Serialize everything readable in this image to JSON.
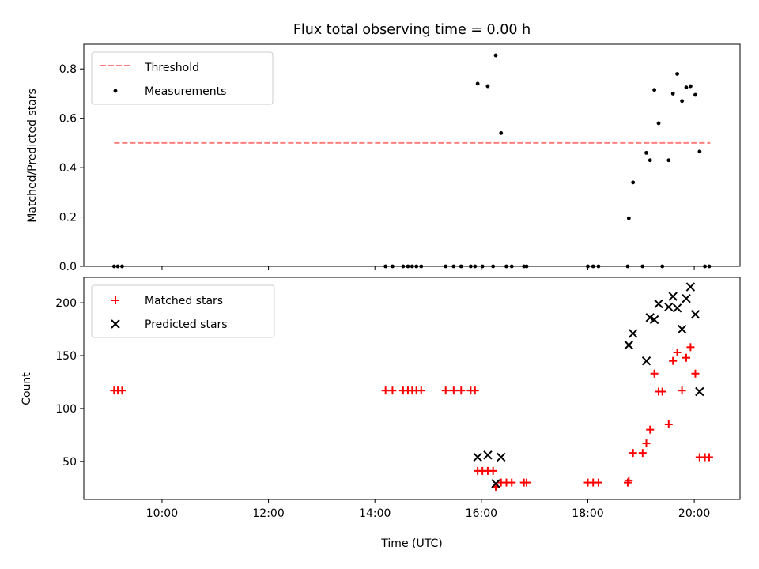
{
  "chart_data": [
    {
      "type": "scatter",
      "title": "Flux total observing time = 0.00 h",
      "xlabel": "",
      "ylabel": "Matched/Predicted stars",
      "ylim": [
        0,
        0.9
      ],
      "xlim": [
        8.53,
        20.86
      ],
      "yticks": [
        0.0,
        0.2,
        0.4,
        0.6,
        0.8
      ],
      "ytick_labels": [
        "0.0",
        "0.2",
        "0.4",
        "0.6",
        "0.8"
      ],
      "xticks": [
        10,
        12,
        14,
        16,
        18,
        20
      ],
      "legend": {
        "position": "top-left",
        "entries": [
          "Threshold",
          "Measurements"
        ]
      },
      "threshold": {
        "name": "Threshold",
        "value": 0.5,
        "x_start": 9.1,
        "x_end": 20.3,
        "color": "#ff7f7f"
      },
      "series": [
        {
          "name": "Measurements",
          "color": "#000000",
          "points": [
            [
              9.1,
              0
            ],
            [
              9.17,
              0
            ],
            [
              9.25,
              0
            ],
            [
              14.2,
              0
            ],
            [
              14.33,
              0
            ],
            [
              14.53,
              0
            ],
            [
              14.62,
              0
            ],
            [
              14.7,
              0
            ],
            [
              14.78,
              0
            ],
            [
              14.87,
              0
            ],
            [
              15.33,
              0
            ],
            [
              15.48,
              0
            ],
            [
              15.62,
              0
            ],
            [
              15.8,
              0
            ],
            [
              15.88,
              0
            ],
            [
              15.93,
              0.74
            ],
            [
              16.02,
              0
            ],
            [
              16.12,
              0.73
            ],
            [
              16.22,
              0
            ],
            [
              16.27,
              0.855
            ],
            [
              16.37,
              0.54
            ],
            [
              16.47,
              0
            ],
            [
              16.57,
              0
            ],
            [
              16.8,
              0
            ],
            [
              16.85,
              0
            ],
            [
              18.0,
              0
            ],
            [
              18.1,
              0
            ],
            [
              18.2,
              0
            ],
            [
              18.75,
              0
            ],
            [
              18.77,
              0.195
            ],
            [
              18.85,
              0.34
            ],
            [
              19.03,
              0
            ],
            [
              19.1,
              0.46
            ],
            [
              19.17,
              0.43
            ],
            [
              19.25,
              0.715
            ],
            [
              19.33,
              0.58
            ],
            [
              19.4,
              0
            ],
            [
              19.52,
              0.43
            ],
            [
              19.6,
              0.7
            ],
            [
              19.68,
              0.78
            ],
            [
              19.77,
              0.67
            ],
            [
              19.85,
              0.725
            ],
            [
              19.93,
              0.73
            ],
            [
              20.02,
              0.695
            ],
            [
              20.1,
              0.465
            ],
            [
              20.2,
              0
            ],
            [
              20.28,
              0
            ]
          ]
        }
      ]
    },
    {
      "type": "scatter",
      "title": "",
      "xlabel": "Time (UTC)",
      "ylabel": "Count",
      "ylim": [
        14,
        224
      ],
      "xlim": [
        8.53,
        20.86
      ],
      "yticks": [
        50,
        100,
        150,
        200
      ],
      "ytick_labels": [
        "50",
        "100",
        "150",
        "200"
      ],
      "xticks": [
        10,
        12,
        14,
        16,
        18,
        20
      ],
      "xtick_labels": [
        "10:00",
        "12:00",
        "14:00",
        "16:00",
        "18:00",
        "20:00"
      ],
      "legend": {
        "position": "top-left",
        "entries": [
          "Matched stars",
          "Predicted stars"
        ]
      },
      "series": [
        {
          "name": "Matched stars",
          "marker": "plus",
          "color": "#ff0000",
          "points": [
            [
              9.1,
              117
            ],
            [
              9.17,
              117
            ],
            [
              9.25,
              117
            ],
            [
              14.2,
              117
            ],
            [
              14.33,
              117
            ],
            [
              14.53,
              117
            ],
            [
              14.62,
              117
            ],
            [
              14.7,
              117
            ],
            [
              14.78,
              117
            ],
            [
              14.87,
              117
            ],
            [
              15.33,
              117
            ],
            [
              15.48,
              117
            ],
            [
              15.62,
              117
            ],
            [
              15.8,
              117
            ],
            [
              15.88,
              117
            ],
            [
              15.93,
              41
            ],
            [
              16.02,
              41
            ],
            [
              16.12,
              41
            ],
            [
              16.22,
              41
            ],
            [
              16.27,
              26
            ],
            [
              16.37,
              30
            ],
            [
              16.47,
              30
            ],
            [
              16.57,
              30
            ],
            [
              16.8,
              30
            ],
            [
              16.85,
              30
            ],
            [
              18.0,
              30
            ],
            [
              18.1,
              30
            ],
            [
              18.2,
              30
            ],
            [
              18.75,
              30
            ],
            [
              18.77,
              32
            ],
            [
              18.85,
              58
            ],
            [
              19.03,
              58
            ],
            [
              19.1,
              67
            ],
            [
              19.17,
              80
            ],
            [
              19.25,
              133
            ],
            [
              19.33,
              116
            ],
            [
              19.4,
              116
            ],
            [
              19.52,
              85
            ],
            [
              19.6,
              145
            ],
            [
              19.68,
              153
            ],
            [
              19.77,
              117
            ],
            [
              19.85,
              148
            ],
            [
              19.93,
              158
            ],
            [
              20.02,
              133
            ],
            [
              20.1,
              54
            ],
            [
              20.2,
              54
            ],
            [
              20.28,
              54
            ]
          ]
        },
        {
          "name": "Predicted stars",
          "marker": "x",
          "color": "#000000",
          "points": [
            [
              15.93,
              54
            ],
            [
              16.12,
              56
            ],
            [
              16.27,
              29
            ],
            [
              16.37,
              54
            ],
            [
              18.77,
              160
            ],
            [
              18.85,
              171
            ],
            [
              19.1,
              145
            ],
            [
              19.17,
              186
            ],
            [
              19.25,
              184
            ],
            [
              19.33,
              199
            ],
            [
              19.52,
              196
            ],
            [
              19.6,
              206
            ],
            [
              19.68,
              195
            ],
            [
              19.77,
              175
            ],
            [
              19.85,
              204
            ],
            [
              19.93,
              215
            ],
            [
              20.02,
              189
            ],
            [
              20.1,
              116
            ]
          ]
        }
      ]
    }
  ]
}
